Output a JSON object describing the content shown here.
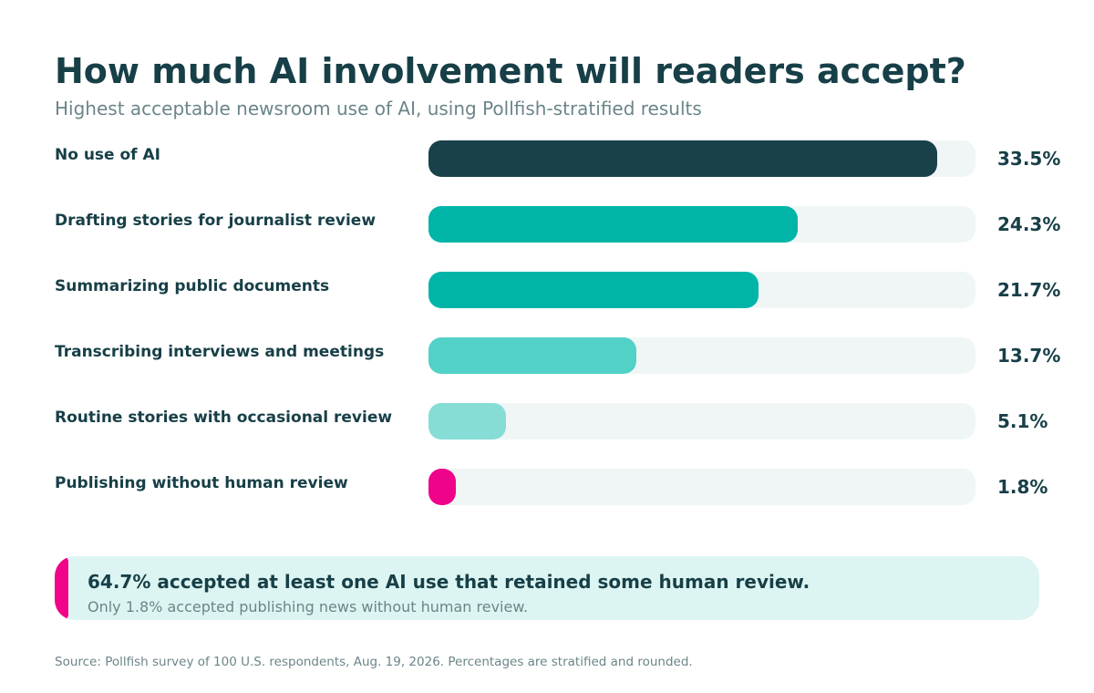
{
  "header": {
    "title": "How much AI involvement will readers accept?",
    "subtitle": "Highest acceptable newsroom use of AI, using Pollfish-stratified results"
  },
  "chart_data": {
    "type": "bar",
    "orientation": "horizontal",
    "title": "How much AI involvement will readers accept?",
    "subtitle": "Highest acceptable newsroom use of AI, using Pollfish-stratified results",
    "xlim": [
      0,
      36
    ],
    "grid": false,
    "bars": [
      {
        "label": "No use of AI",
        "value": 33.5,
        "display": "33.5%",
        "color": "#19414a"
      },
      {
        "label": "Drafting stories for journalist review",
        "value": 24.3,
        "display": "24.3%",
        "color": "#00b5a8"
      },
      {
        "label": "Summarizing public documents",
        "value": 21.7,
        "display": "21.7%",
        "color": "#00b5a8"
      },
      {
        "label": "Transcribing interviews and meetings",
        "value": 13.7,
        "display": "13.7%",
        "color": "#52d1c7"
      },
      {
        "label": "Routine stories with occasional review",
        "value": 5.1,
        "display": "5.1%",
        "color": "#86ddd6"
      },
      {
        "label": "Publishing without human review",
        "value": 1.8,
        "display": "1.8%",
        "color": "#ef0389"
      }
    ]
  },
  "callout": {
    "headline": "64.7% accepted at least one AI use that retained some human review.",
    "note": "Only 1.8% accepted publishing news without human review.",
    "accent_color": "#f0058a"
  },
  "source": "Source: Pollfish survey of 100 U.S. respondents, Aug. 19, 2026. Percentages are stratified and rounded."
}
